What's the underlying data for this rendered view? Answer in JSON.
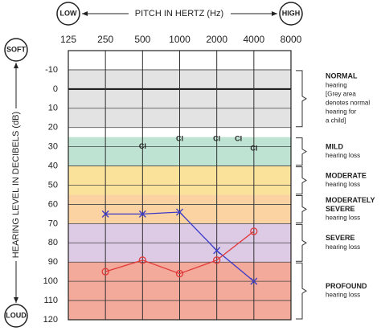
{
  "chart_data": {
    "type": "line",
    "title": "PITCH IN HERTZ (Hz)",
    "y_label": "HEARING LEVEL IN DECIBELS (dB)",
    "x_low_label": "LOW",
    "x_high_label": "HIGH",
    "y_top_label": "SOFT",
    "y_bottom_label": "LOUD",
    "x": [
      250,
      500,
      1000,
      2000,
      4000
    ],
    "xscale": "log",
    "xlim": [
      125,
      8000
    ],
    "xticks": [
      125,
      250,
      500,
      1000,
      2000,
      4000,
      8000
    ],
    "ylim": [
      -20,
      120
    ],
    "y_inverted": true,
    "yticks": [
      -10,
      0,
      10,
      20,
      30,
      40,
      50,
      60,
      70,
      80,
      90,
      100,
      110,
      120
    ],
    "grid": true,
    "series": [
      {
        "color": "#3a3ac8",
        "marker": "x",
        "values": [
          65,
          65,
          64,
          84,
          100
        ]
      },
      {
        "color": "#e03a3a",
        "marker": "o",
        "values": [
          95,
          89,
          96,
          89,
          74
        ]
      }
    ],
    "annotations": [
      {
        "text": "CI",
        "x": 500,
        "y": 30
      },
      {
        "text": "CI",
        "x": 1000,
        "y": 26
      },
      {
        "text": "CI",
        "x": 2000,
        "y": 26
      },
      {
        "text": "CI",
        "x": 3000,
        "y": 26
      },
      {
        "text": "CI",
        "x": 4000,
        "y": 31
      }
    ],
    "bands": [
      {
        "from": -10,
        "to": 20,
        "color": "#e3e3e3",
        "lines": [
          "NORMAL",
          "hearing",
          "[Grey area",
          "denotes normal",
          "hearing for",
          "a child]"
        ]
      },
      {
        "from": 25,
        "to": 40,
        "color": "#bfe3d2",
        "lines": [
          "MILD",
          "hearing loss"
        ]
      },
      {
        "from": 40,
        "to": 55,
        "color": "#fbe29a",
        "lines": [
          "MODERATE",
          "hearing loss"
        ]
      },
      {
        "from": 55,
        "to": 70,
        "color": "#fbd2a2",
        "lines": [
          "MODERATELY",
          "SEVERE",
          "hearing loss"
        ]
      },
      {
        "from": 70,
        "to": 90,
        "color": "#ddcbe6",
        "lines": [
          "SEVERE",
          "hearing loss"
        ]
      },
      {
        "from": 90,
        "to": 120,
        "color": "#f4aa9b",
        "lines": [
          "PROFOUND",
          "hearing loss"
        ]
      }
    ]
  }
}
